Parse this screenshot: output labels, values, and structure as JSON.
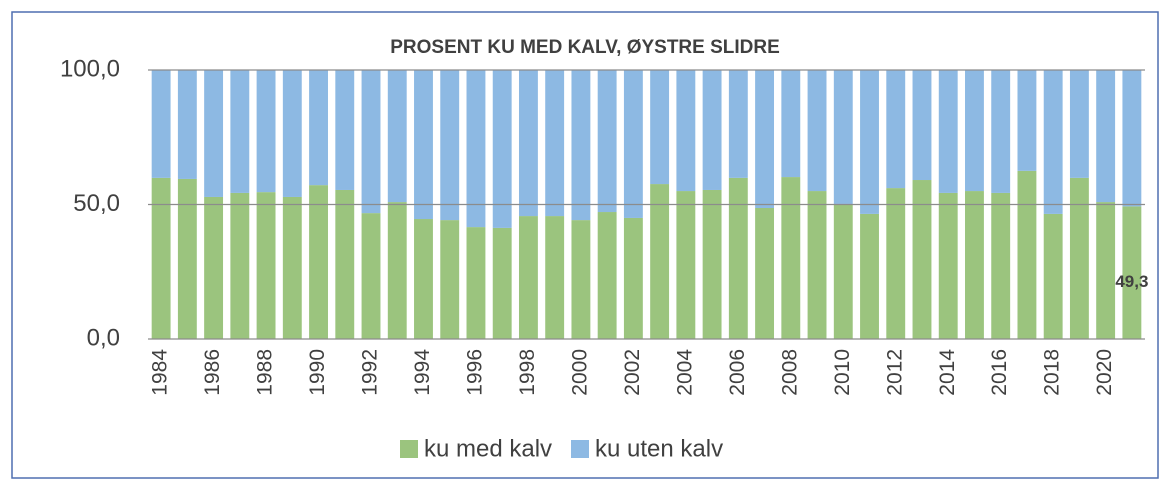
{
  "chart_data": {
    "type": "stacked_bar",
    "title": "PROSENT KU MED KALV, ØYSTRE SLIDRE",
    "categories": [
      "1984",
      null,
      "1986",
      null,
      "1988",
      null,
      "1990",
      null,
      "1992",
      null,
      "1994",
      null,
      "1996",
      null,
      "1998",
      null,
      "2000",
      null,
      "2002",
      null,
      "2004",
      null,
      "2006",
      null,
      "2008",
      null,
      "2010",
      null,
      "2012",
      null,
      "2014",
      null,
      "2016",
      null,
      "2018",
      null,
      "2020",
      null
    ],
    "series": [
      {
        "name": "ku med kalv",
        "color": "#9bc47e",
        "values": [
          59.9,
          59.5,
          52.8,
          54.3,
          54.6,
          52.8,
          57.2,
          55.4,
          46.8,
          50.9,
          44.6,
          44.2,
          41.6,
          41.3,
          45.7,
          45.7,
          44.2,
          47.2,
          45.0,
          57.6,
          55.0,
          55.4,
          59.9,
          48.7,
          60.2,
          55.0,
          50.2,
          46.5,
          56.1,
          59.1,
          54.3,
          55.0,
          54.3,
          62.5,
          46.5,
          59.9,
          50.9,
          49.3
        ],
        "value_labels": [
          null,
          null,
          null,
          null,
          null,
          null,
          null,
          null,
          null,
          null,
          null,
          null,
          null,
          null,
          null,
          null,
          null,
          null,
          null,
          null,
          null,
          null,
          null,
          null,
          null,
          null,
          null,
          null,
          null,
          null,
          null,
          null,
          null,
          null,
          null,
          null,
          null,
          "49,3"
        ]
      },
      {
        "name": "ku uten kalv",
        "color": "#8db9e3",
        "values": [
          40.1,
          40.5,
          47.2,
          45.7,
          45.4,
          47.2,
          42.8,
          44.6,
          53.2,
          49.1,
          55.4,
          55.8,
          58.4,
          58.7,
          54.3,
          54.3,
          55.8,
          52.8,
          55.0,
          42.4,
          45.0,
          44.6,
          40.1,
          51.3,
          39.8,
          45.0,
          49.8,
          53.5,
          43.9,
          40.9,
          45.7,
          45.0,
          45.7,
          37.5,
          53.5,
          40.1,
          49.1,
          50.7
        ]
      }
    ],
    "ylim": [
      0,
      100
    ],
    "yticks": [
      {
        "value": 0,
        "label": "0,0"
      },
      {
        "value": 50,
        "label": "50,0"
      },
      {
        "value": 100,
        "label": "100,0"
      }
    ],
    "grid": true,
    "legend": "bottom"
  }
}
